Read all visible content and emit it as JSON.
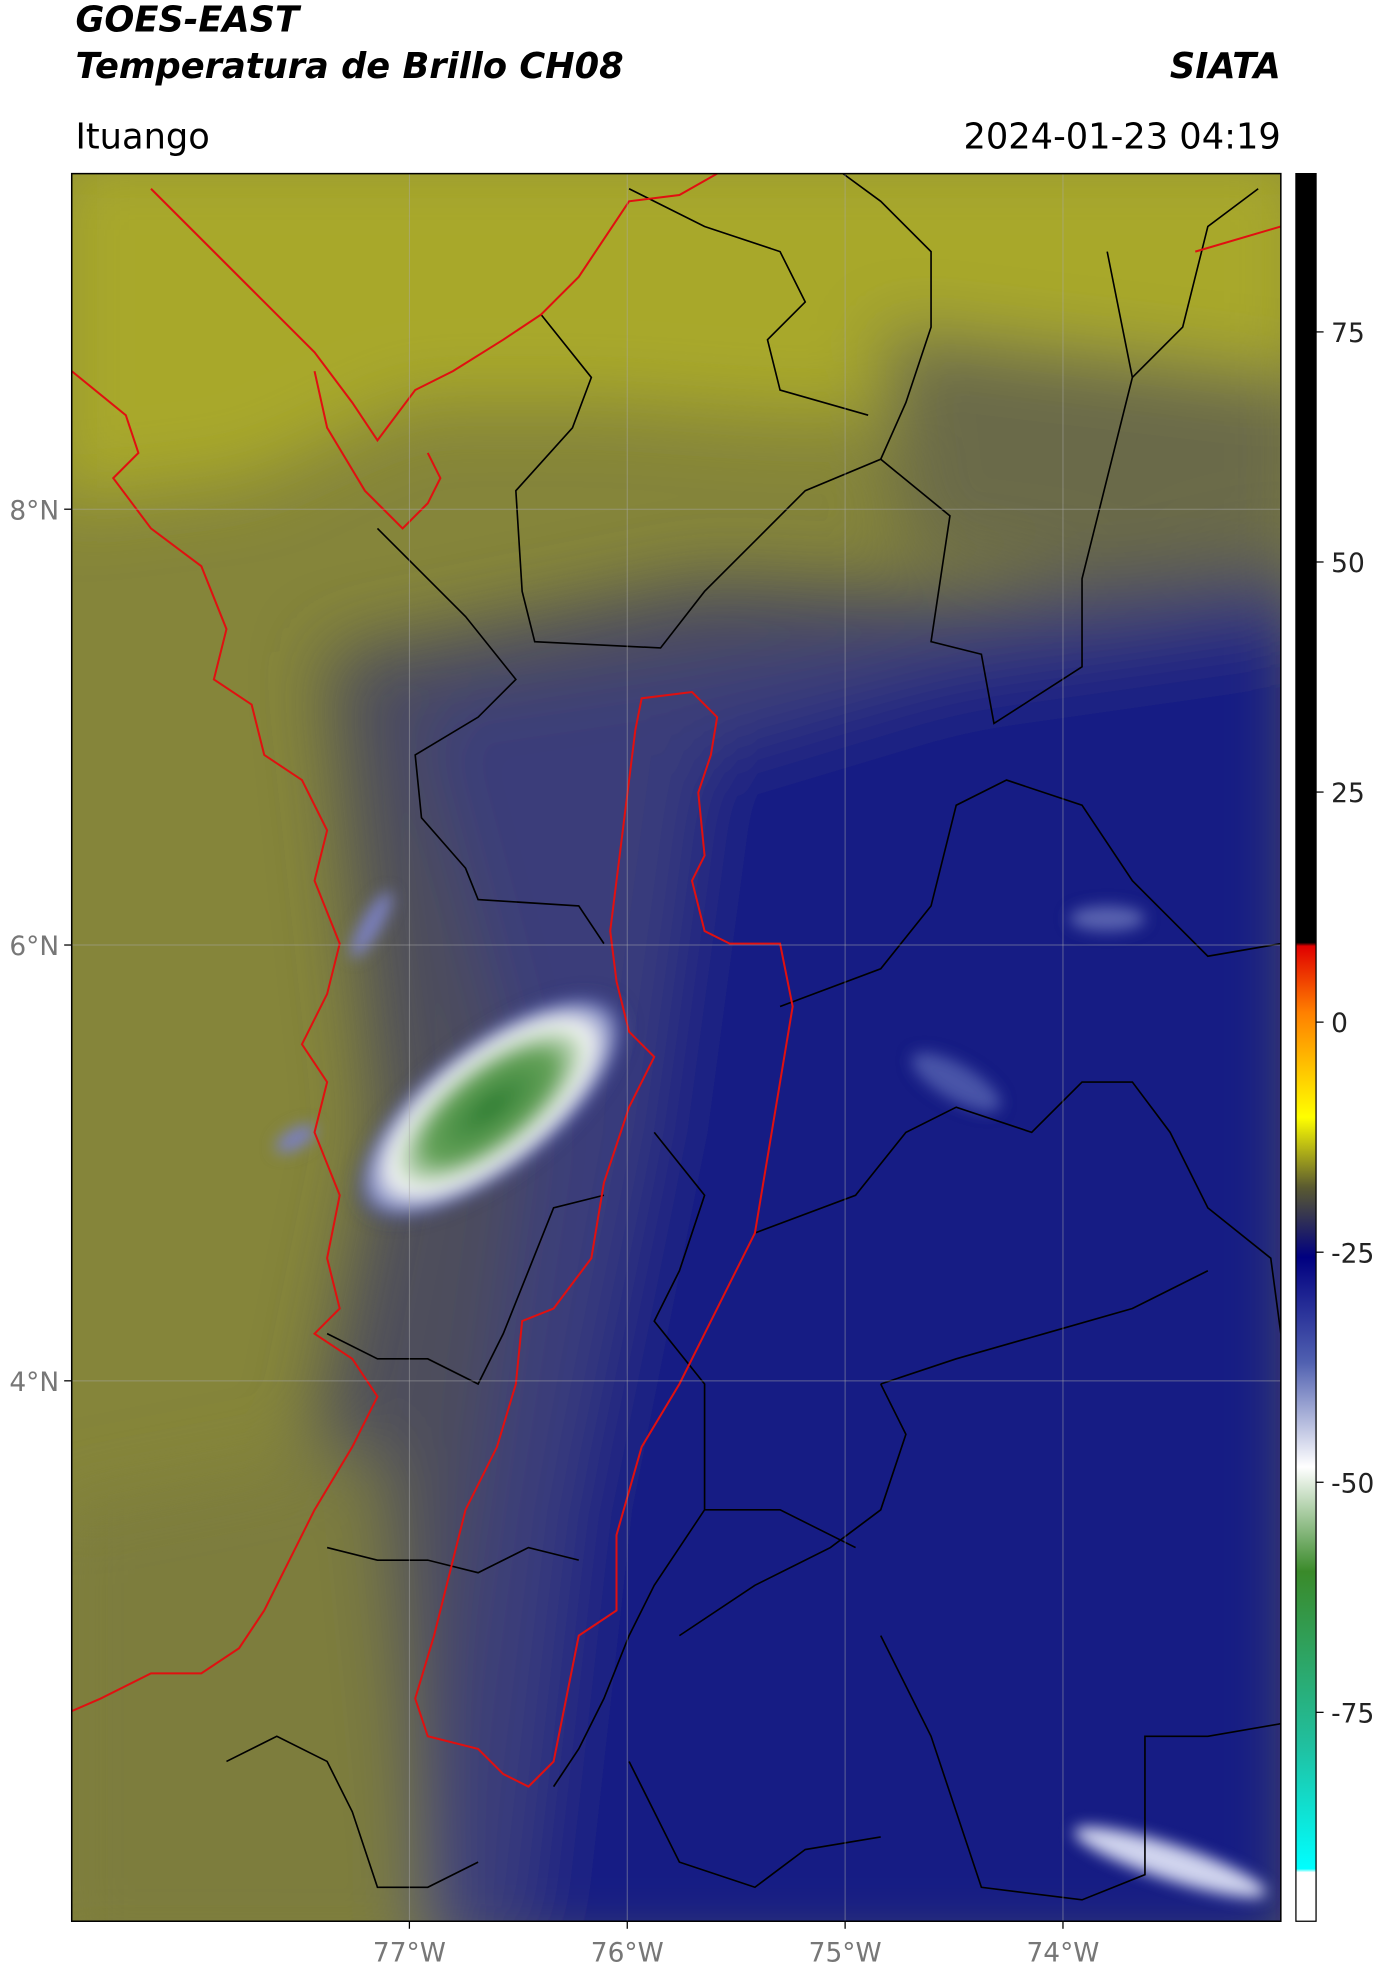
{
  "header": {
    "title": "GOES-EAST",
    "subtitle": "Temperatura de Brillo CH08",
    "org": "SIATA",
    "region": "Ituango",
    "datetime": "2024-01-23 04:19"
  },
  "map": {
    "xlim": [
      -78.55,
      -73.0
    ],
    "ylim": [
      1.52,
      9.54
    ],
    "xticks": [
      {
        "value": -77,
        "label": "77°W"
      },
      {
        "value": -76,
        "label": "76°W"
      },
      {
        "value": -75,
        "label": "75°W"
      },
      {
        "value": -74,
        "label": "74°W"
      }
    ],
    "yticks": [
      {
        "value": 8,
        "label": "8°N"
      },
      {
        "value": 6,
        "label": "6°N"
      },
      {
        "value": 4,
        "label": "4°N"
      }
    ]
  },
  "colorbar": {
    "lim": [
      -97.7,
      92.2
    ],
    "ticks": [
      75,
      50,
      25,
      0,
      -25,
      -50,
      -75
    ]
  }
}
